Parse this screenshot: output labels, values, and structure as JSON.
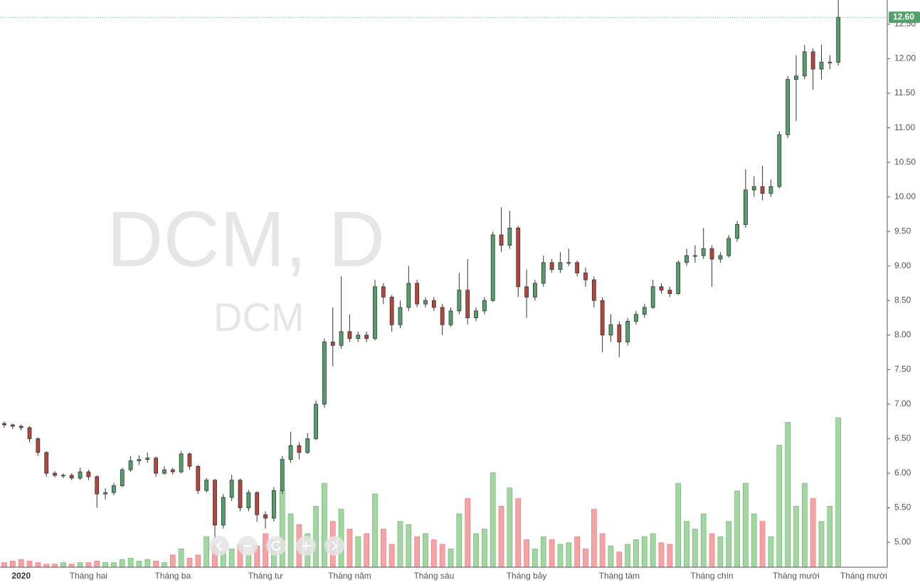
{
  "chart_data": {
    "type": "candlestick",
    "title": "DCM, D",
    "subtitle": "DCM",
    "categories": [
      null,
      null,
      "2020",
      null,
      null,
      null,
      null,
      null,
      null,
      null,
      "Tháng hai",
      null,
      null,
      null,
      null,
      null,
      null,
      null,
      null,
      null,
      "Tháng ba",
      null,
      null,
      null,
      null,
      null,
      null,
      null,
      null,
      null,
      null,
      "Tháng tư",
      null,
      null,
      null,
      null,
      null,
      null,
      null,
      null,
      null,
      "Tháng năm",
      null,
      null,
      null,
      null,
      null,
      null,
      null,
      null,
      null,
      "Tháng sáu",
      null,
      null,
      null,
      null,
      null,
      null,
      null,
      null,
      null,
      null,
      "Tháng bảy",
      null,
      null,
      null,
      null,
      null,
      null,
      null,
      null,
      null,
      null,
      "Tháng tám",
      null,
      null,
      null,
      null,
      null,
      null,
      null,
      null,
      null,
      null,
      "Tháng chín",
      null,
      null,
      null,
      null,
      null,
      null,
      null,
      null,
      null,
      "Tháng mười",
      null,
      null,
      null,
      null,
      null,
      null,
      null,
      null,
      "Tháng mười một"
    ],
    "open": [
      6.72,
      6.7,
      6.68,
      6.66,
      6.5,
      6.3,
      6.0,
      5.97,
      5.97,
      5.93,
      6.02,
      5.95,
      5.7,
      5.72,
      5.82,
      6.05,
      6.18,
      6.2,
      6.22,
      6.0,
      6.05,
      6.02,
      6.28,
      6.1,
      5.75,
      5.9,
      5.25,
      5.65,
      5.9,
      5.5,
      5.72,
      5.4,
      5.35,
      5.75,
      6.2,
      6.4,
      6.3,
      6.5,
      7.0,
      7.9,
      7.85,
      8.05,
      7.95,
      8.0,
      7.95,
      8.7,
      8.55,
      8.15,
      8.4,
      8.75,
      8.45,
      8.5,
      8.4,
      8.15,
      8.35,
      8.65,
      8.25,
      8.35,
      8.5,
      9.45,
      9.3,
      9.55,
      8.7,
      8.55,
      8.75,
      9.05,
      8.95,
      9.05,
      9.05,
      8.9,
      8.8,
      8.5,
      8.0,
      8.15,
      7.9,
      8.2,
      8.3,
      8.4,
      8.7,
      8.65,
      8.6,
      9.05,
      9.15,
      9.15,
      9.25,
      9.1,
      9.15,
      9.4,
      9.6,
      10.1,
      10.15,
      10.05,
      10.15,
      10.9,
      11.7,
      11.75,
      12.1,
      11.85,
      11.95,
      11.95,
      null,
      null,
      null,
      null
    ],
    "high": [
      6.75,
      6.72,
      6.7,
      6.68,
      6.52,
      6.32,
      6.03,
      6.0,
      6.0,
      6.08,
      6.05,
      5.97,
      5.78,
      5.86,
      6.08,
      6.25,
      6.26,
      6.3,
      6.24,
      6.1,
      6.08,
      6.32,
      6.3,
      6.12,
      5.93,
      5.92,
      5.7,
      5.98,
      5.92,
      5.76,
      5.74,
      5.45,
      5.8,
      6.25,
      6.6,
      6.45,
      6.58,
      7.05,
      7.95,
      8.4,
      8.85,
      8.3,
      8.05,
      8.05,
      8.8,
      8.75,
      8.58,
      8.5,
      9.0,
      8.8,
      8.55,
      8.55,
      8.45,
      8.4,
      8.9,
      9.1,
      8.4,
      8.55,
      9.5,
      9.85,
      9.8,
      9.58,
      8.95,
      8.8,
      9.15,
      9.1,
      9.2,
      9.25,
      9.08,
      8.98,
      8.85,
      8.55,
      8.3,
      8.2,
      8.25,
      8.35,
      8.45,
      8.8,
      8.75,
      8.7,
      9.08,
      9.25,
      9.3,
      9.55,
      9.3,
      9.2,
      9.45,
      9.65,
      10.4,
      10.3,
      10.45,
      10.25,
      10.95,
      11.75,
      12.05,
      12.2,
      12.15,
      12.2,
      12.05,
      12.85,
      null,
      null,
      null,
      null
    ],
    "low": [
      6.66,
      6.64,
      6.62,
      6.45,
      6.25,
      5.95,
      5.94,
      5.93,
      5.9,
      5.9,
      5.9,
      5.5,
      5.62,
      5.68,
      5.8,
      6.02,
      6.12,
      6.15,
      5.95,
      5.98,
      5.98,
      6.0,
      6.05,
      5.7,
      5.72,
      5.05,
      5.2,
      5.6,
      5.45,
      5.45,
      5.3,
      5.2,
      5.3,
      5.7,
      6.15,
      6.2,
      6.28,
      6.48,
      6.95,
      7.55,
      7.8,
      7.9,
      7.9,
      7.9,
      7.92,
      8.45,
      8.05,
      8.1,
      8.35,
      8.4,
      8.4,
      8.35,
      8.0,
      8.12,
      8.3,
      8.15,
      8.2,
      8.3,
      8.48,
      9.2,
      9.25,
      8.55,
      8.25,
      8.5,
      8.7,
      8.9,
      8.9,
      9.0,
      8.85,
      8.7,
      8.4,
      7.75,
      7.9,
      7.68,
      7.85,
      8.15,
      8.25,
      8.38,
      8.6,
      8.55,
      8.58,
      9.0,
      9.05,
      9.1,
      8.7,
      9.05,
      9.12,
      9.35,
      9.55,
      10.0,
      9.95,
      10.0,
      10.12,
      10.85,
      11.1,
      11.7,
      11.55,
      11.7,
      11.85,
      11.9,
      null,
      null,
      null,
      null
    ],
    "close": [
      6.7,
      6.68,
      6.66,
      6.5,
      6.3,
      6.0,
      5.97,
      5.97,
      5.93,
      6.02,
      5.95,
      5.7,
      5.72,
      5.82,
      6.05,
      6.18,
      6.2,
      6.22,
      6.0,
      6.05,
      6.02,
      6.28,
      6.1,
      5.75,
      5.9,
      5.25,
      5.65,
      5.9,
      5.5,
      5.72,
      5.4,
      5.35,
      5.75,
      6.2,
      6.4,
      6.3,
      6.5,
      7.0,
      7.9,
      7.85,
      8.05,
      7.95,
      8.0,
      7.95,
      8.7,
      8.55,
      8.15,
      8.4,
      8.75,
      8.45,
      8.5,
      8.4,
      8.15,
      8.35,
      8.65,
      8.25,
      8.35,
      8.5,
      9.45,
      9.3,
      9.55,
      8.7,
      8.55,
      8.75,
      9.05,
      8.95,
      9.05,
      9.05,
      8.9,
      8.8,
      8.5,
      8.0,
      8.15,
      7.9,
      8.2,
      8.3,
      8.4,
      8.7,
      8.65,
      8.6,
      9.05,
      9.15,
      9.15,
      9.25,
      9.1,
      9.15,
      9.4,
      9.6,
      10.1,
      10.15,
      10.05,
      10.15,
      10.9,
      11.7,
      11.75,
      12.1,
      11.85,
      11.95,
      11.95,
      12.6,
      null,
      null,
      null,
      null
    ],
    "volume": [
      3,
      4,
      5,
      4,
      3,
      2,
      2,
      3,
      2,
      3,
      3,
      4,
      3,
      3,
      5,
      6,
      4,
      5,
      4,
      3,
      8,
      12,
      6,
      8,
      20,
      14,
      10,
      12,
      15,
      8,
      14,
      22,
      18,
      50,
      35,
      28,
      22,
      40,
      55,
      30,
      38,
      25,
      20,
      22,
      48,
      25,
      15,
      30,
      28,
      20,
      22,
      18,
      15,
      12,
      35,
      45,
      22,
      25,
      62,
      40,
      52,
      45,
      18,
      12,
      20,
      18,
      15,
      16,
      20,
      12,
      38,
      22,
      14,
      10,
      15,
      18,
      20,
      22,
      16,
      15,
      55,
      30,
      25,
      35,
      22,
      20,
      30,
      50,
      55,
      35,
      30,
      20,
      80,
      95,
      40,
      55,
      45,
      30,
      40,
      98,
      null,
      null,
      null,
      null
    ],
    "ylim": [
      4.64,
      12.85
    ],
    "yticks": [
      {
        "value": 5,
        "label": "5.00"
      },
      {
        "value": 5.5,
        "label": "5.50"
      },
      {
        "value": 6,
        "label": "6.00"
      },
      {
        "value": 6.5,
        "label": "6.50"
      },
      {
        "value": 7,
        "label": "7.00"
      },
      {
        "value": 7.5,
        "label": "7.50"
      },
      {
        "value": 8,
        "label": "8.00"
      },
      {
        "value": 8.5,
        "label": "8.50"
      },
      {
        "value": 9,
        "label": "9.00"
      },
      {
        "value": 9.5,
        "label": "9.50"
      },
      {
        "value": 10,
        "label": "10.00"
      },
      {
        "value": 10.5,
        "label": "10.50"
      },
      {
        "value": 11,
        "label": "11.00"
      },
      {
        "value": 11.5,
        "label": "11.50"
      },
      {
        "value": 12,
        "label": "12.00"
      },
      {
        "value": 12.5,
        "label": "12.50"
      }
    ],
    "last_price": {
      "value": 12.6,
      "label": "12.60"
    },
    "up_color": "#53a06a",
    "down_color": "#b5463e",
    "volume_up_color": "#a3d6a3",
    "volume_down_color": "#f6a3a6",
    "last_price_color": "#53a06a"
  }
}
